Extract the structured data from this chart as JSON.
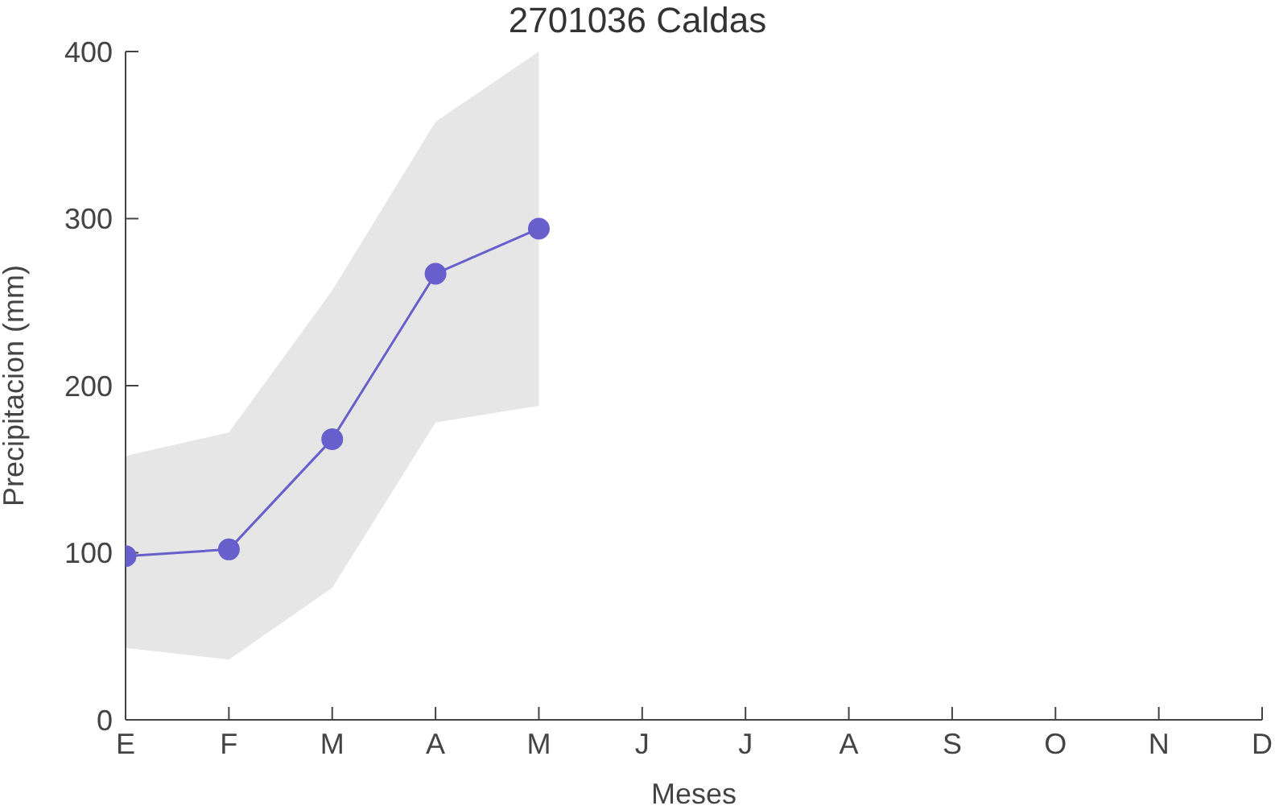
{
  "chart_data": {
    "type": "line",
    "title": "2701036 Caldas",
    "xlabel": "Meses",
    "ylabel": "Precipitacion (mm)",
    "categories": [
      "E",
      "F",
      "M",
      "A",
      "M",
      "J",
      "J",
      "A",
      "S",
      "O",
      "N",
      "D"
    ],
    "series": [
      {
        "color": "#6760cc",
        "values": [
          98,
          102,
          168,
          267,
          294,
          null,
          null,
          null,
          null,
          null,
          null,
          null
        ],
        "lower": [
          43,
          36,
          79,
          178,
          188,
          null,
          null,
          null,
          null,
          null,
          null,
          null
        ],
        "upper": [
          158,
          172,
          257,
          358,
          400,
          null,
          null,
          null,
          null,
          null,
          null,
          null
        ]
      }
    ],
    "ylim": [
      0,
      400
    ],
    "yticks": [
      0,
      100,
      200,
      300,
      400
    ],
    "grid": false,
    "legend": false,
    "marker": "circle",
    "line_style": "solid"
  }
}
